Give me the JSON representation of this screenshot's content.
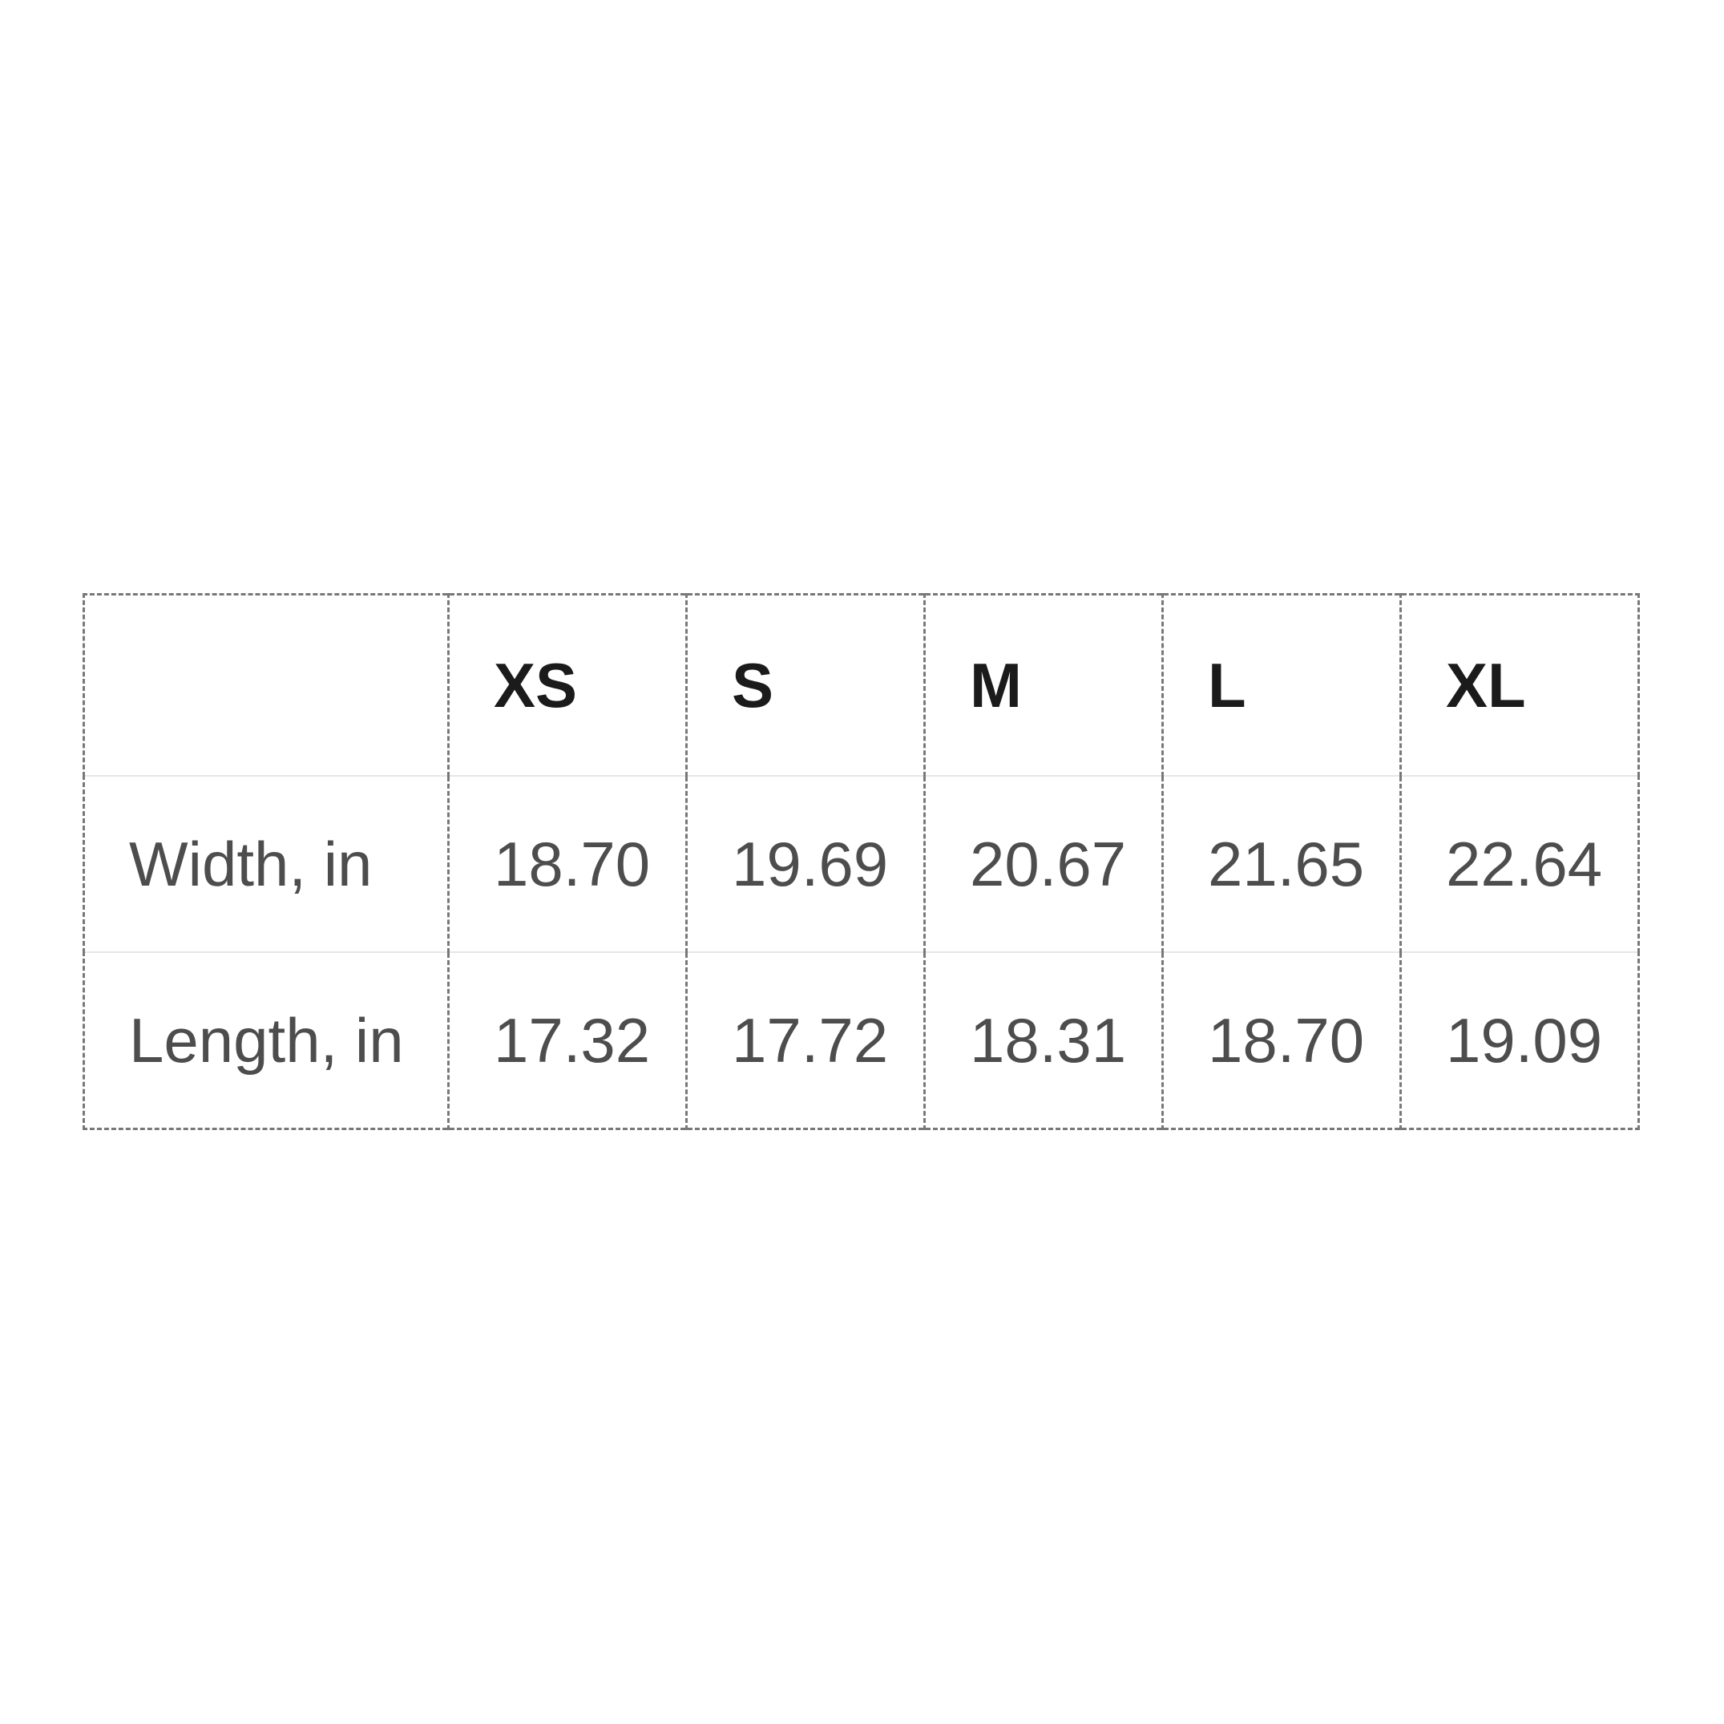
{
  "size_chart": {
    "columns": [
      "XS",
      "S",
      "M",
      "L",
      "XL"
    ],
    "rows": [
      {
        "label": "Width, in",
        "values": [
          "18.70",
          "19.69",
          "20.67",
          "21.65",
          "22.64"
        ]
      },
      {
        "label": "Length, in",
        "values": [
          "17.32",
          "17.72",
          "18.31",
          "18.70",
          "19.09"
        ]
      }
    ]
  },
  "chart_data": {
    "type": "table",
    "title": "",
    "columns": [
      "XS",
      "S",
      "M",
      "L",
      "XL"
    ],
    "row_labels": [
      "Width, in",
      "Length, in"
    ],
    "rows": [
      {
        "label": "Width, in",
        "values": [
          18.7,
          19.69,
          20.67,
          21.65,
          22.64
        ]
      },
      {
        "label": "Length, in",
        "values": [
          17.32,
          17.72,
          18.31,
          18.7,
          19.09
        ]
      }
    ],
    "units": "in"
  },
  "colors": {
    "background": "#ffffff",
    "dashed_border": "#787878",
    "row_separator": "#e7e7e7",
    "header_text": "#1b1b1b",
    "body_text": "#4d4d4d"
  }
}
